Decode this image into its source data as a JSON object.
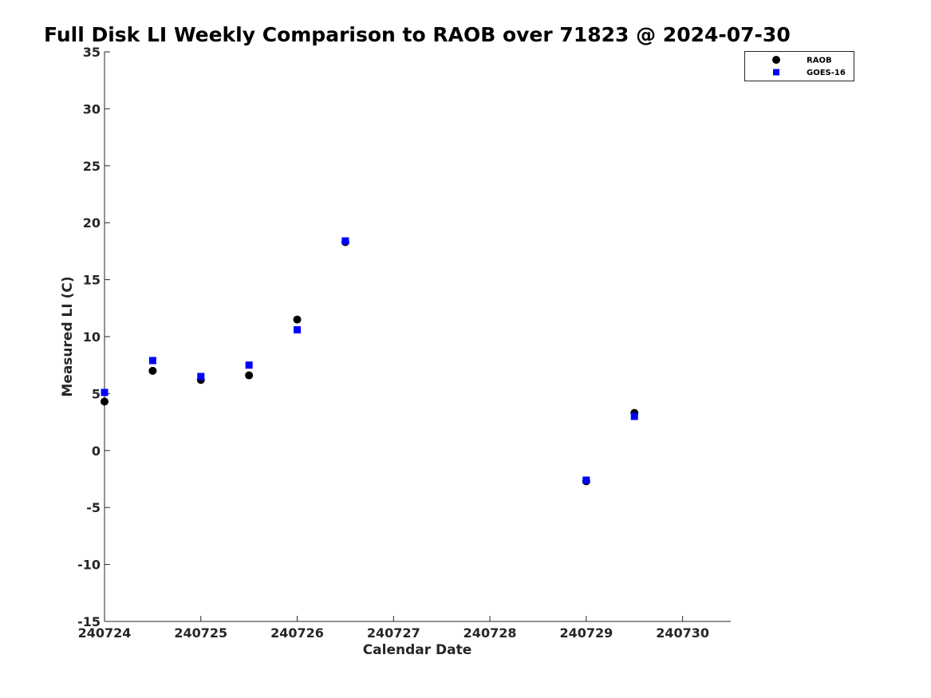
{
  "chart_data": {
    "type": "scatter",
    "title": "Full Disk LI Weekly Comparison to RAOB over 71823 @ 2024-07-30",
    "xlabel": "Calendar Date",
    "ylabel": "Measured LI (C)",
    "xlim": [
      "2024-07-24",
      "2024-07-30 12:00"
    ],
    "ylim": [
      -15,
      35
    ],
    "x_ticks": [
      {
        "date": "2024-07-24",
        "label": "240724"
      },
      {
        "date": "2024-07-25",
        "label": "240725"
      },
      {
        "date": "2024-07-26",
        "label": "240726"
      },
      {
        "date": "2024-07-27",
        "label": "240727"
      },
      {
        "date": "2024-07-28",
        "label": "240728"
      },
      {
        "date": "2024-07-29",
        "label": "240729"
      },
      {
        "date": "2024-07-30",
        "label": "240730"
      }
    ],
    "y_ticks": [
      35,
      30,
      25,
      20,
      15,
      10,
      5,
      0,
      -5,
      -10,
      -15
    ],
    "grid": false,
    "legend_position": "top-right",
    "series": [
      {
        "name": "RAOB",
        "marker": "circle",
        "color": "#000000",
        "points": [
          {
            "x": "2024-07-24 00:00",
            "y": 4.3
          },
          {
            "x": "2024-07-24 12:00",
            "y": 7.0
          },
          {
            "x": "2024-07-25 00:00",
            "y": 6.2
          },
          {
            "x": "2024-07-25 12:00",
            "y": 6.6
          },
          {
            "x": "2024-07-26 00:00",
            "y": 11.5
          },
          {
            "x": "2024-07-26 12:00",
            "y": 18.3
          },
          {
            "x": "2024-07-29 00:00",
            "y": -2.7
          },
          {
            "x": "2024-07-29 12:00",
            "y": 3.3
          }
        ]
      },
      {
        "name": "GOES-16",
        "marker": "square",
        "color": "#0000FF",
        "points": [
          {
            "x": "2024-07-24 00:00",
            "y": 5.1
          },
          {
            "x": "2024-07-24 12:00",
            "y": 7.9
          },
          {
            "x": "2024-07-25 00:00",
            "y": 6.5
          },
          {
            "x": "2024-07-25 12:00",
            "y": 7.5
          },
          {
            "x": "2024-07-26 00:00",
            "y": 10.6
          },
          {
            "x": "2024-07-26 12:00",
            "y": 18.4
          },
          {
            "x": "2024-07-29 00:00",
            "y": -2.6
          },
          {
            "x": "2024-07-29 12:00",
            "y": 3.0
          }
        ]
      }
    ]
  }
}
